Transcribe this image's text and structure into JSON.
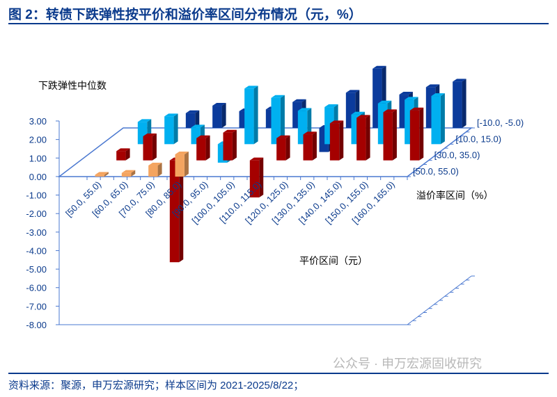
{
  "title": "图 2：转债下跌弹性按平价和溢价率区间分布情况（元，%）",
  "source": "资料来源：聚源，申万宏源研究；样本区间为 2021-2025/8/22；",
  "watermark": "公众号 · 申万宏源固收研究",
  "chart_data": {
    "type": "bar",
    "subtype": "3d-clustered-depth",
    "ylabel": "下跌弹性中位数",
    "xlabel": "平价区间（元）",
    "zlabel": "溢价率区间（%）",
    "ylim": [
      -8,
      3
    ],
    "yticks": [
      "3.00",
      "2.00",
      "1.00",
      "0.00",
      "-1.00",
      "-2.00",
      "-3.00",
      "-4.00",
      "-5.00",
      "-6.00",
      "-7.00",
      "-8.00"
    ],
    "categories": [
      "[50.0, 55.0)",
      "[60.0, 65.0)",
      "[70.0, 75.0)",
      "[80.0, 85.0)",
      "[90.0, 95.0)",
      "[100.0, 105.0)",
      "[110.0, 115.0)",
      "[120.0, 125.0)",
      "[130.0, 135.0)",
      "[140.0, 145.0)",
      "[150.0, 155.0)",
      "[160.0, 165.0)"
    ],
    "series": [
      {
        "name": "[-10.0, -5.0)",
        "color": "#0b3b9c",
        "values": [
          null,
          0.8,
          1.2,
          0.9,
          1.0,
          1.4,
          -1.3,
          1.9,
          3.2,
          1.8,
          2.2,
          2.5
        ]
      },
      {
        "name": "[10.0, 15.0)",
        "color": "#00b0f0",
        "values": [
          1.2,
          1.5,
          0.9,
          -1.0,
          3.0,
          2.5,
          1.8,
          2.0,
          1.6,
          2.2,
          2.4,
          2.6
        ]
      },
      {
        "name": "[30.0, 35.0)",
        "color": "#a50000",
        "values": [
          0.5,
          1.3,
          -5.5,
          1.2,
          1.5,
          -2.0,
          1.2,
          1.4,
          2.0,
          2.3,
          2.6,
          2.7
        ]
      },
      {
        "name": "[50.0, 55.0)",
        "color": "#f4a460",
        "values": [
          0.1,
          0.2,
          0.6,
          1.2,
          null,
          null,
          null,
          null,
          null,
          null,
          null,
          null
        ]
      }
    ],
    "grid": false,
    "legend": "depth-axis-right"
  }
}
